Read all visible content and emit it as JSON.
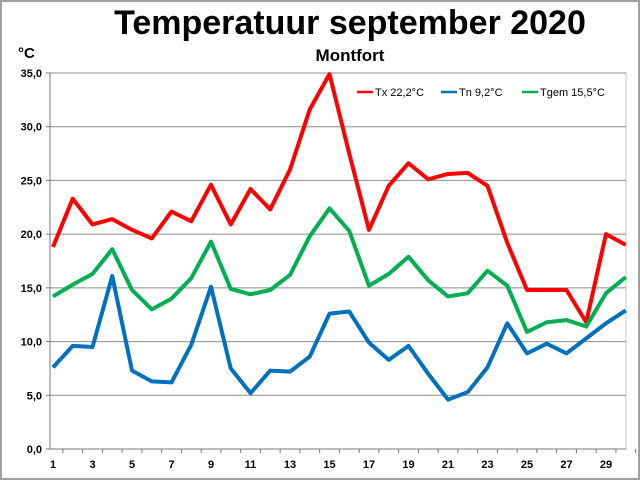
{
  "chart_data": {
    "type": "line",
    "title": "Temperatuur september 2020",
    "subtitle": "Montfort",
    "ylabel": "°C",
    "xlabel": "",
    "ylim": [
      0,
      35
    ],
    "yticks": [
      "0,0",
      "5,0",
      "10,0",
      "15,0",
      "20,0",
      "25,0",
      "30,0",
      "35,0"
    ],
    "xticks": [
      "1",
      "3",
      "5",
      "7",
      "9",
      "11",
      "13",
      "15",
      "17",
      "19",
      "21",
      "23",
      "25",
      "27",
      "29"
    ],
    "grid": true,
    "legend_position": "top-right",
    "x": [
      1,
      2,
      3,
      4,
      5,
      6,
      7,
      8,
      9,
      10,
      11,
      12,
      13,
      14,
      15,
      16,
      17,
      18,
      19,
      20,
      21,
      22,
      23,
      24,
      25,
      26,
      27,
      28,
      29,
      30
    ],
    "series": [
      {
        "name": "Tx 22,2°C",
        "color": "#ff0000",
        "values": [
          18.8,
          23.3,
          20.9,
          21.4,
          20.4,
          19.6,
          22.1,
          21.2,
          24.6,
          20.9,
          24.2,
          22.3,
          26.0,
          31.6,
          34.9,
          27.5,
          20.4,
          24.5,
          26.6,
          25.1,
          25.6,
          25.7,
          24.5,
          19.2,
          14.8,
          14.8,
          14.8,
          11.8,
          20.0,
          19.0
        ]
      },
      {
        "name": "Tn 9,2°C",
        "color": "#0070c0",
        "values": [
          7.6,
          9.6,
          9.5,
          16.1,
          7.3,
          6.3,
          6.2,
          9.7,
          15.1,
          7.5,
          5.2,
          7.3,
          7.2,
          8.6,
          12.6,
          12.8,
          9.9,
          8.3,
          9.6,
          7.0,
          4.6,
          5.3,
          7.6,
          11.7,
          8.9,
          9.8,
          8.9,
          10.3,
          11.7,
          12.9
        ]
      },
      {
        "name": "Tgem 15,5°C",
        "color": "#00b050",
        "values": [
          14.2,
          15.3,
          16.3,
          18.6,
          14.8,
          13.0,
          14.0,
          15.9,
          19.3,
          14.9,
          14.4,
          14.8,
          16.2,
          19.8,
          22.4,
          20.3,
          15.2,
          16.3,
          17.9,
          15.7,
          14.2,
          14.5,
          16.6,
          15.2,
          10.9,
          11.8,
          12.0,
          11.4,
          14.5,
          16.0
        ]
      }
    ]
  }
}
